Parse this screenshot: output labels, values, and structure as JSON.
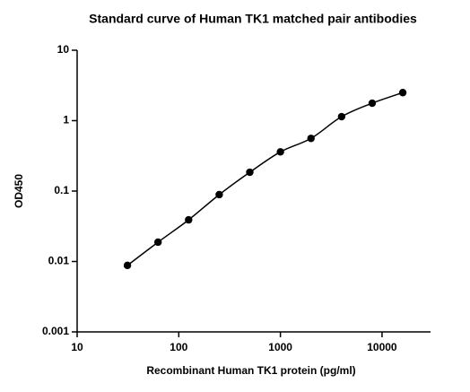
{
  "chart_data": {
    "type": "scatter",
    "title": "Standard curve of Human TK1 matched pair antibodies",
    "x_label": "Recombinant Human TK1 protein (pg/ml)",
    "y_label": "OD450",
    "x_scale": "log",
    "y_scale": "log",
    "xlim": [
      10,
      30000
    ],
    "xticks": [
      10,
      100,
      1000,
      10000
    ],
    "ylim": [
      0.001,
      10
    ],
    "yticks": [
      0.001,
      0.01,
      0.1,
      1,
      10
    ],
    "series": [
      {
        "color": "#000000",
        "fit_line": true,
        "x": [
          31.25,
          62.5,
          125,
          250,
          500,
          1000,
          2000,
          4000,
          8000,
          16000
        ],
        "values": [
          0.0088,
          0.0188,
          0.039,
          0.089,
          0.185,
          0.36,
          0.56,
          1.14,
          1.77,
          2.5
        ]
      }
    ]
  }
}
